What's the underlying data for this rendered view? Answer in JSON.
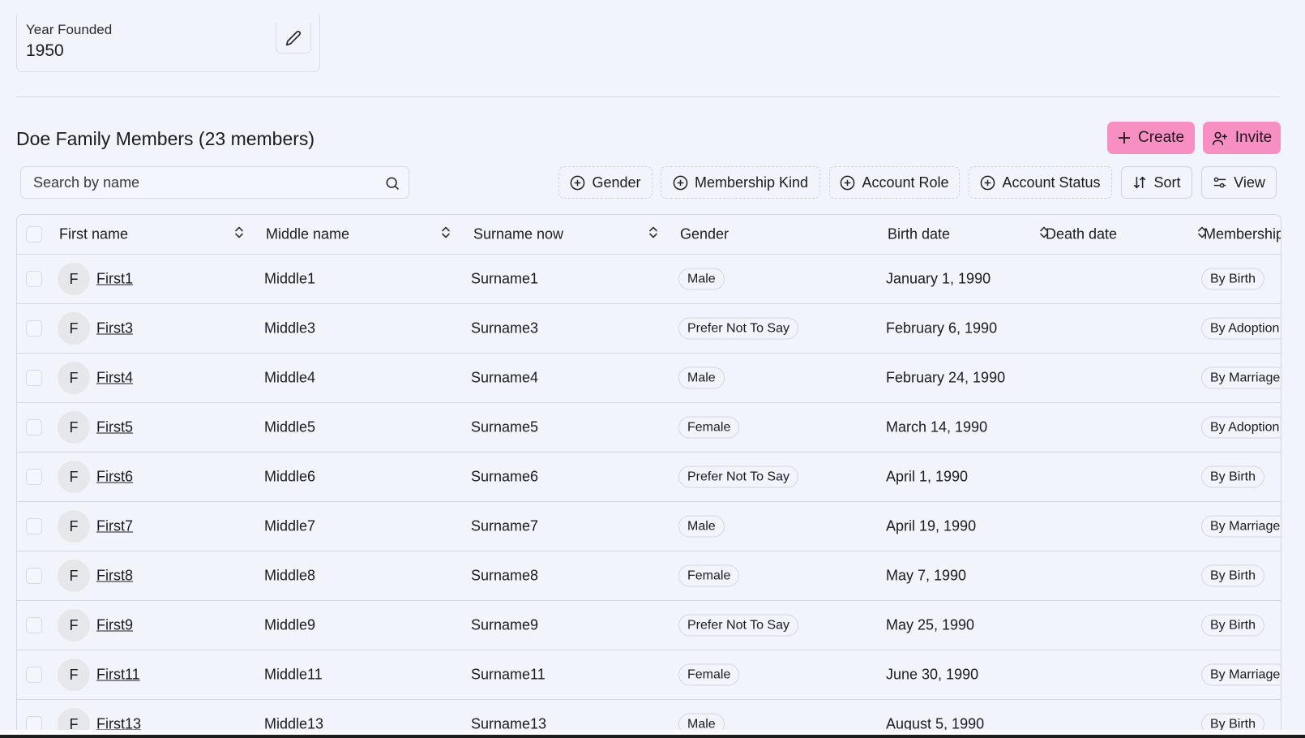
{
  "year_card": {
    "label": "Year Founded",
    "value": "1950",
    "edit_icon": "pencil-icon"
  },
  "section": {
    "title": "Doe Family Members (23 members)"
  },
  "actions": {
    "create": "Create",
    "invite": "Invite",
    "accent": "#f88fc3"
  },
  "search": {
    "placeholder": "Search by name",
    "value": ""
  },
  "filters": [
    "Gender",
    "Membership Kind",
    "Account Role",
    "Account Status"
  ],
  "toolbar": {
    "sort": "Sort",
    "view": "View"
  },
  "table": {
    "columns": [
      "First name",
      "Middle name",
      "Surname now",
      "Gender",
      "Birth date",
      "Death date",
      "Membership Kind"
    ],
    "rows": [
      {
        "initial": "F",
        "first": "First1",
        "middle": "Middle1",
        "surname": "Surname1",
        "gender": "Male",
        "birth": "January 1, 1990",
        "death": "",
        "membership": "By Birth"
      },
      {
        "initial": "F",
        "first": "First3",
        "middle": "Middle3",
        "surname": "Surname3",
        "gender": "Prefer Not To Say",
        "birth": "February 6, 1990",
        "death": "",
        "membership": "By Adoption"
      },
      {
        "initial": "F",
        "first": "First4",
        "middle": "Middle4",
        "surname": "Surname4",
        "gender": "Male",
        "birth": "February 24, 1990",
        "death": "",
        "membership": "By Marriage"
      },
      {
        "initial": "F",
        "first": "First5",
        "middle": "Middle5",
        "surname": "Surname5",
        "gender": "Female",
        "birth": "March 14, 1990",
        "death": "",
        "membership": "By Adoption"
      },
      {
        "initial": "F",
        "first": "First6",
        "middle": "Middle6",
        "surname": "Surname6",
        "gender": "Prefer Not To Say",
        "birth": "April 1, 1990",
        "death": "",
        "membership": "By Birth"
      },
      {
        "initial": "F",
        "first": "First7",
        "middle": "Middle7",
        "surname": "Surname7",
        "gender": "Male",
        "birth": "April 19, 1990",
        "death": "",
        "membership": "By Marriage"
      },
      {
        "initial": "F",
        "first": "First8",
        "middle": "Middle8",
        "surname": "Surname8",
        "gender": "Female",
        "birth": "May 7, 1990",
        "death": "",
        "membership": "By Birth"
      },
      {
        "initial": "F",
        "first": "First9",
        "middle": "Middle9",
        "surname": "Surname9",
        "gender": "Prefer Not To Say",
        "birth": "May 25, 1990",
        "death": "",
        "membership": "By Birth"
      },
      {
        "initial": "F",
        "first": "First11",
        "middle": "Middle11",
        "surname": "Surname11",
        "gender": "Female",
        "birth": "June 30, 1990",
        "death": "",
        "membership": "By Marriage"
      },
      {
        "initial": "F",
        "first": "First13",
        "middle": "Middle13",
        "surname": "Surname13",
        "gender": "Male",
        "birth": "August 5, 1990",
        "death": "",
        "membership": "By Birth"
      }
    ]
  }
}
